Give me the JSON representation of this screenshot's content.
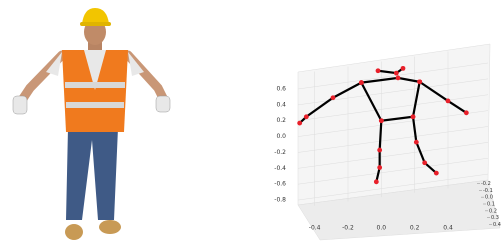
{
  "chart_data": {
    "type": "skeleton3d",
    "xlim": [
      -0.5,
      0.55
    ],
    "ylim": [
      -0.9,
      0.9
    ],
    "zlim": [
      -0.25,
      0.45
    ],
    "xticks": [
      -0.4,
      -0.2,
      {
        "value": 0,
        "label": "0.0"
      },
      0.2,
      0.4
    ],
    "yticks": [
      0.6,
      0.4,
      0.2,
      {
        "value": 0,
        "label": "0.0"
      },
      -0.2,
      -0.4,
      -0.6,
      -0.8
    ],
    "zticks": [
      -0.2,
      -0.1,
      {
        "value": 0,
        "label": "0.0"
      },
      0.1,
      0.2,
      0.3,
      0.4
    ],
    "grid": true,
    "line_color": "#000000",
    "point_color": "#e8202a",
    "series": [
      {
        "x": [
          -0.02,
          0.09,
          0.13
        ],
        "values": [
          0.83,
          0.8,
          0.86
        ]
      },
      {
        "x": [
          -0.12,
          0.1,
          0.23
        ],
        "values": [
          0.68,
          0.74,
          0.69
        ]
      },
      {
        "x": [
          -0.12,
          -0.29,
          -0.45,
          -0.49
        ],
        "values": [
          0.68,
          0.49,
          0.25,
          0.17
        ]
      },
      {
        "x": [
          0.23,
          0.4,
          0.51
        ],
        "values": [
          0.69,
          0.45,
          0.3
        ]
      },
      {
        "x": [
          -0.12,
          0,
          0.19,
          0.23
        ],
        "values": [
          0.68,
          0.2,
          0.25,
          0.69
        ]
      },
      {
        "x": [
          0,
          -0.01,
          -0.01,
          -0.03
        ],
        "values": [
          0.2,
          -0.17,
          -0.39,
          -0.57
        ]
      },
      {
        "x": [
          0.19,
          0.21,
          0.26,
          0.33
        ],
        "values": [
          0.25,
          -0.07,
          -0.33,
          -0.46
        ]
      }
    ]
  }
}
